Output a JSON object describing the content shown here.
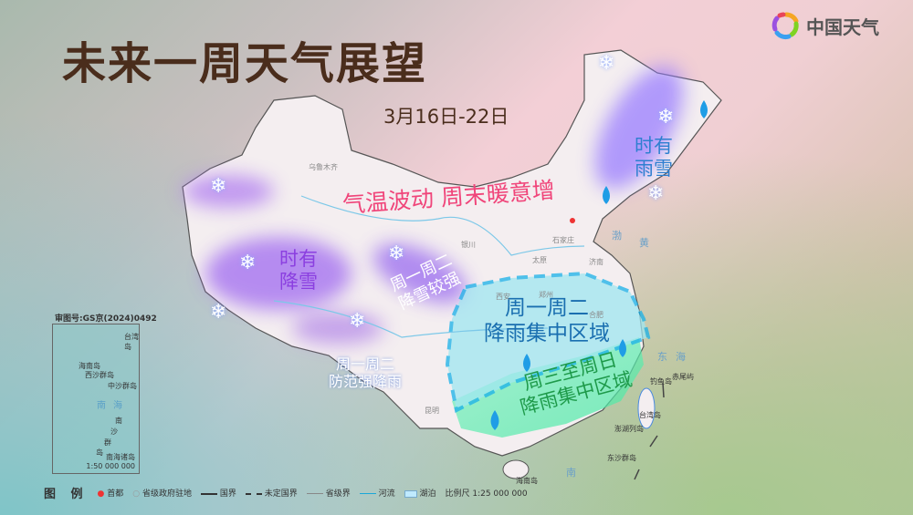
{
  "title": "未来一周天气展望",
  "date": "3月16日-22日",
  "logo": {
    "text": "中国天气"
  },
  "labels": {
    "temperature": "气温波动 周末暖意增",
    "ne_snow_l1": "时有",
    "ne_snow_l2": "雨雪",
    "west_snow_l1": "时有",
    "west_snow_l2": "降雪",
    "nw_strong_l1": "周一周二",
    "nw_strong_l2": "降雪较强",
    "rain_center_l1": "周一周二",
    "rain_center_l2": "降雨集中区域",
    "rain_south_l1": "周三至周日",
    "rain_south_l2": "降雨集中区域",
    "heavy_rain_l1": "周一周二",
    "heavy_rain_l2": "防范强降雨"
  },
  "colors": {
    "temperature": "#f0457a",
    "snow": "#8b3fe0",
    "rain": "#1a6fb0",
    "rain_south": "#1e9a4a",
    "title": "#4a2d1c"
  },
  "places": [
    "乌鲁木齐",
    "银川",
    "石家庄",
    "太原",
    "济南",
    "西安",
    "郑州",
    "合肥",
    "昆明",
    "钓鱼岛",
    "赤尾屿",
    "台湾岛",
    "澎湖列岛",
    "东沙群岛",
    "海南岛",
    "黄",
    "渤",
    "东",
    "海",
    "南"
  ],
  "inset": {
    "approval": "审图号:GS京(2024)0492",
    "title": "南海诸岛",
    "scale": "1:50 000 000",
    "places": [
      "台湾岛",
      "海南岛",
      "西沙群岛",
      "中沙群岛",
      "南",
      "海",
      "南",
      "沙",
      "群",
      "岛"
    ]
  },
  "legend": {
    "heading": "图 例",
    "capital": "首都",
    "provincial_capital": "省级政府驻地",
    "national_border": "国界",
    "undetermined_border": "未定国界",
    "provincial_border": "省级界",
    "river": "河流",
    "lake": "湖泊",
    "scale": "比例尺 1:25 000 000"
  }
}
